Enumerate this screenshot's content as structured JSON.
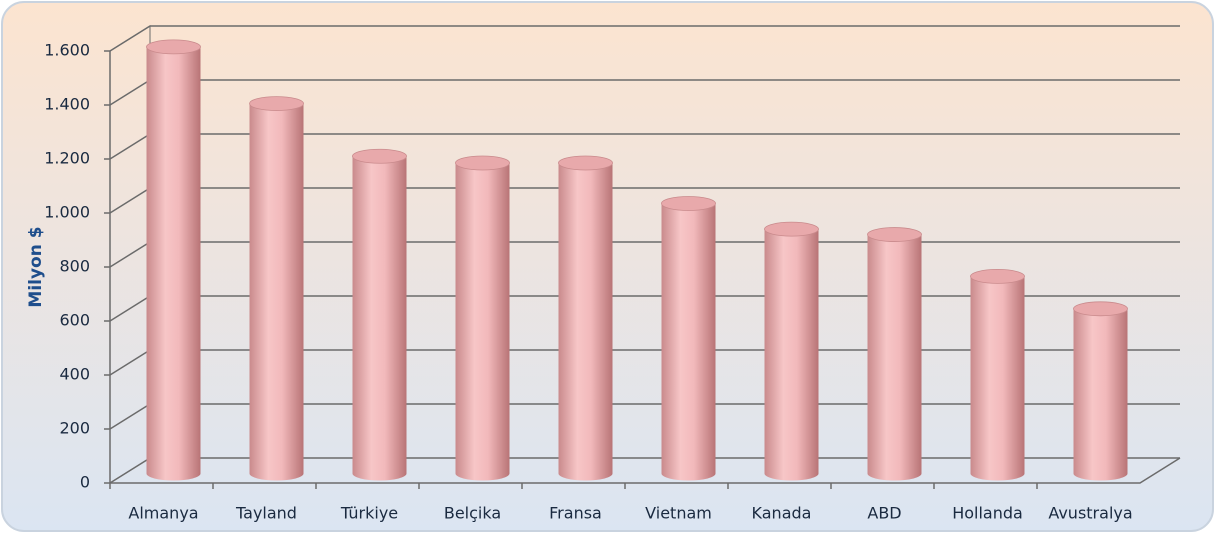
{
  "chart_data": {
    "type": "bar3d",
    "y_label": "Milyon $",
    "categories": [
      "Almanya",
      "Tayland",
      "Türkiye",
      "Belçika",
      "Fransa",
      "Vietnam",
      "Kanada",
      "ABD",
      "Hollanda",
      "Avustralya"
    ],
    "values": [
      1580,
      1370,
      1175,
      1150,
      1150,
      1000,
      905,
      885,
      730,
      610
    ],
    "color": "#f2b9bb",
    "ylim": [
      0,
      1600
    ],
    "yticks": [
      0,
      200,
      400,
      600,
      800,
      {
        "value": 1000,
        "label": "1.000"
      },
      {
        "value": 1200,
        "label": "1.200"
      },
      {
        "value": 1400,
        "label": "1.400"
      },
      {
        "value": 1600,
        "label": "1.600"
      }
    ],
    "grid": true
  }
}
